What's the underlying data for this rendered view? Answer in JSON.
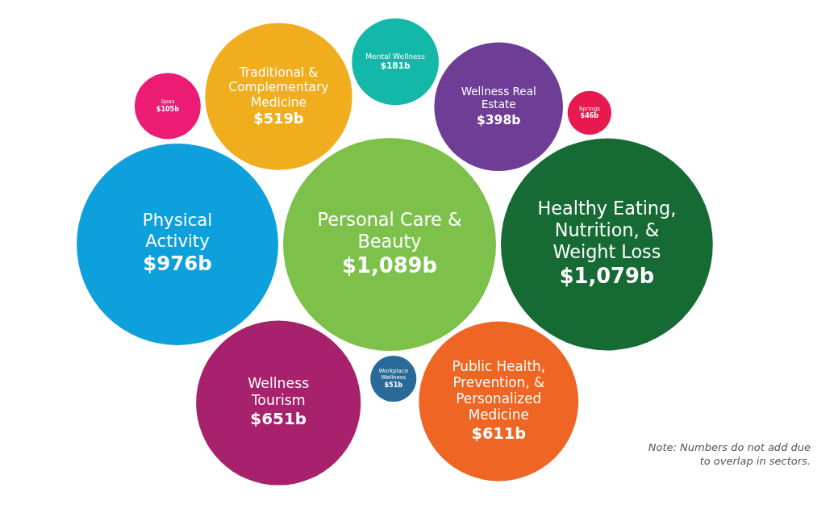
{
  "chart_data": {
    "type": "other",
    "categories": [
      "Traditional & Complementary Medicine",
      "Mental Wellness",
      "Wellness Real Estate",
      "Wellness Tourism",
      "Personal Care & Beauty",
      "Public Health, Prevention, & Personalized Medicine",
      "Workplace Wellness",
      "Springs",
      "Spas",
      "Healthy Eating, Nutrition, & Weight Loss",
      "Physical Activity"
    ],
    "values": [
      519,
      181,
      398,
      651,
      1089,
      611,
      51,
      46,
      105,
      1079,
      976
    ],
    "value_labels": [
      "$519b",
      "$181b",
      "$398b",
      "$651b",
      "$1,089b",
      "$611b",
      "$51b",
      "$46b",
      "$105b",
      "$1,079b",
      "$976b"
    ],
    "colors": [
      "#f0ae1e",
      "#14b8a8",
      "#6e3d96",
      "#a7216d",
      "#7dc14b",
      "#ee6524",
      "#2a6a99",
      "#e8194f",
      "#ec1b73",
      "#166b35",
      "#0ea0dc"
    ],
    "annotations": [
      "Note: Numbers do not add due to overlap in sectors."
    ]
  }
}
